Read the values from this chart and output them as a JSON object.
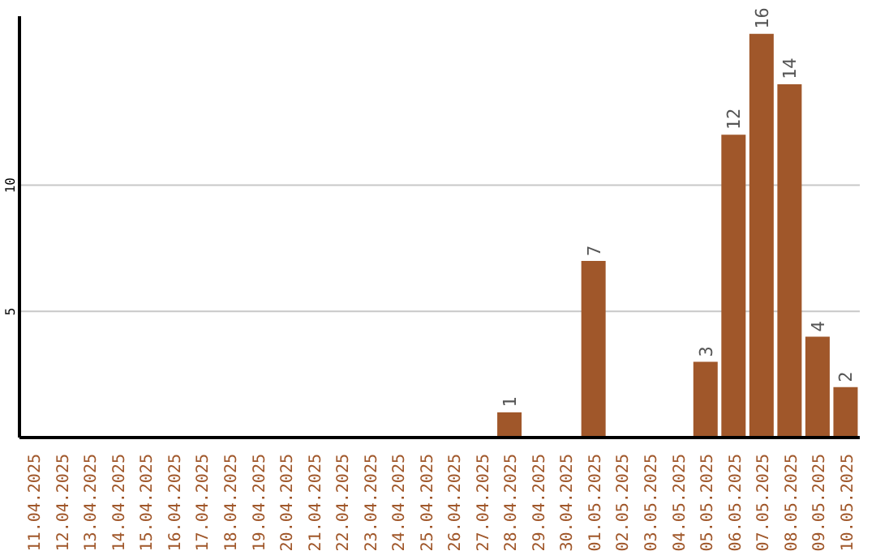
{
  "chart_data": {
    "type": "bar",
    "categories": [
      "11.04.2025",
      "12.04.2025",
      "13.04.2025",
      "14.04.2025",
      "15.04.2025",
      "16.04.2025",
      "17.04.2025",
      "18.04.2025",
      "19.04.2025",
      "20.04.2025",
      "21.04.2025",
      "22.04.2025",
      "23.04.2025",
      "24.04.2025",
      "25.04.2025",
      "26.04.2025",
      "27.04.2025",
      "28.04.2025",
      "29.04.2025",
      "30.04.2025",
      "01.05.2025",
      "02.05.2025",
      "03.05.2025",
      "04.05.2025",
      "05.05.2025",
      "06.05.2025",
      "07.05.2025",
      "08.05.2025",
      "09.05.2025",
      "10.05.2025"
    ],
    "values": [
      0,
      0,
      0,
      0,
      0,
      0,
      0,
      0,
      0,
      0,
      0,
      0,
      0,
      0,
      0,
      0,
      0,
      1,
      0,
      0,
      7,
      0,
      0,
      0,
      3,
      12,
      16,
      14,
      4,
      2
    ],
    "value_labels": [
      null,
      null,
      null,
      null,
      null,
      null,
      null,
      null,
      null,
      null,
      null,
      null,
      null,
      null,
      null,
      null,
      null,
      "1",
      null,
      null,
      "7",
      null,
      null,
      null,
      "3",
      "12",
      "16",
      "14",
      "4",
      "2"
    ],
    "color": "#a0572a",
    "ylim": [
      0,
      16.7
    ],
    "yticks": [
      5,
      10
    ],
    "grid": "y"
  }
}
